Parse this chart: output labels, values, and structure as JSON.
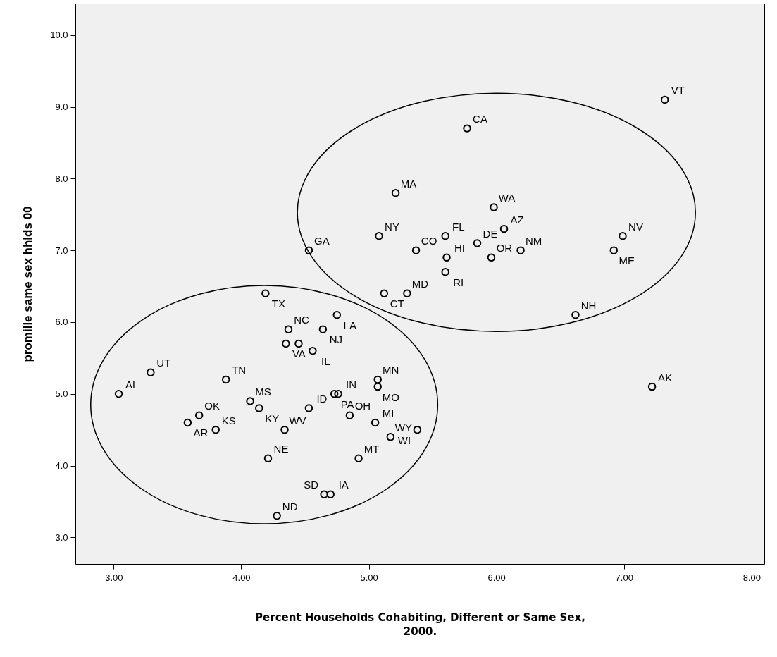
{
  "chart_data": {
    "type": "scatter",
    "xlabel": "Percent Households Cohabiting, Different or Same Sex, 2000.",
    "ylabel": "promille same sex hhlds 00",
    "x": [
      7.32,
      5.77,
      5.21,
      5.98,
      6.06,
      5.08,
      5.6,
      6.99,
      5.85,
      4.53,
      5.37,
      6.19,
      6.92,
      5.61,
      5.96,
      5.6,
      5.12,
      5.3,
      6.62,
      7.22,
      4.19,
      4.75,
      4.37,
      4.64,
      4.35,
      4.45,
      4.56,
      3.29,
      3.04,
      3.88,
      3.58,
      3.67,
      3.8,
      4.07,
      4.14,
      4.34,
      4.53,
      4.73,
      4.76,
      5.07,
      5.07,
      4.85,
      5.05,
      5.17,
      5.38,
      4.21,
      4.92,
      4.65,
      4.7,
      4.28
    ],
    "values": [
      9.1,
      8.7,
      7.8,
      7.6,
      7.3,
      7.2,
      7.2,
      7.2,
      7.1,
      7.0,
      7.0,
      7.0,
      7.0,
      6.9,
      6.9,
      6.7,
      6.4,
      6.4,
      6.1,
      5.1,
      6.4,
      6.1,
      5.9,
      5.9,
      5.7,
      5.7,
      5.6,
      5.3,
      5.0,
      5.2,
      4.6,
      4.7,
      4.5,
      4.9,
      4.8,
      4.5,
      4.8,
      5.0,
      5.0,
      5.2,
      5.1,
      4.7,
      4.6,
      4.4,
      4.5,
      4.1,
      4.1,
      3.6,
      3.6,
      3.3
    ],
    "value_labels": [
      "VT",
      "CA",
      "MA",
      "WA",
      "AZ",
      "NY",
      "FL",
      "NV",
      "DE",
      "GA",
      "CO",
      "NM",
      "ME",
      "HI",
      "OR",
      "RI",
      "CT",
      "MD",
      "NH",
      "AK",
      "TX",
      "LA",
      "NC",
      "NJ",
      "VA",
      null,
      "IL",
      "UT",
      "AL",
      "TN",
      "AR",
      "OK",
      "KS",
      "MS",
      "KY",
      "WV",
      "ID",
      "PA",
      "IN",
      "MN",
      "MO",
      "OH",
      "MI",
      "WY",
      "WI",
      "NE",
      "MT",
      "SD",
      "IA",
      "ND"
    ],
    "color": "#000000",
    "marker": "circle",
    "xlim": [
      2.7,
      8.1
    ],
    "xticks": [
      {
        "value": 3,
        "label": "3.00"
      },
      {
        "value": 4,
        "label": "4.00"
      },
      {
        "value": 5,
        "label": "5.00"
      },
      {
        "value": 6,
        "label": "6.00"
      },
      {
        "value": 7,
        "label": "7.00"
      },
      {
        "value": 8,
        "label": "8.00"
      }
    ],
    "ylim": [
      2.63,
      10.44
    ],
    "yticks": [
      {
        "value": 3,
        "label": "3.0"
      },
      {
        "value": 4,
        "label": "4.0"
      },
      {
        "value": 5,
        "label": "5.0"
      },
      {
        "value": 6,
        "label": "6.0"
      },
      {
        "value": 7,
        "label": "7.0"
      },
      {
        "value": 8,
        "label": "8.0"
      },
      {
        "value": 9,
        "label": "9.0"
      },
      {
        "value": 10,
        "label": "10.0"
      }
    ]
  }
}
